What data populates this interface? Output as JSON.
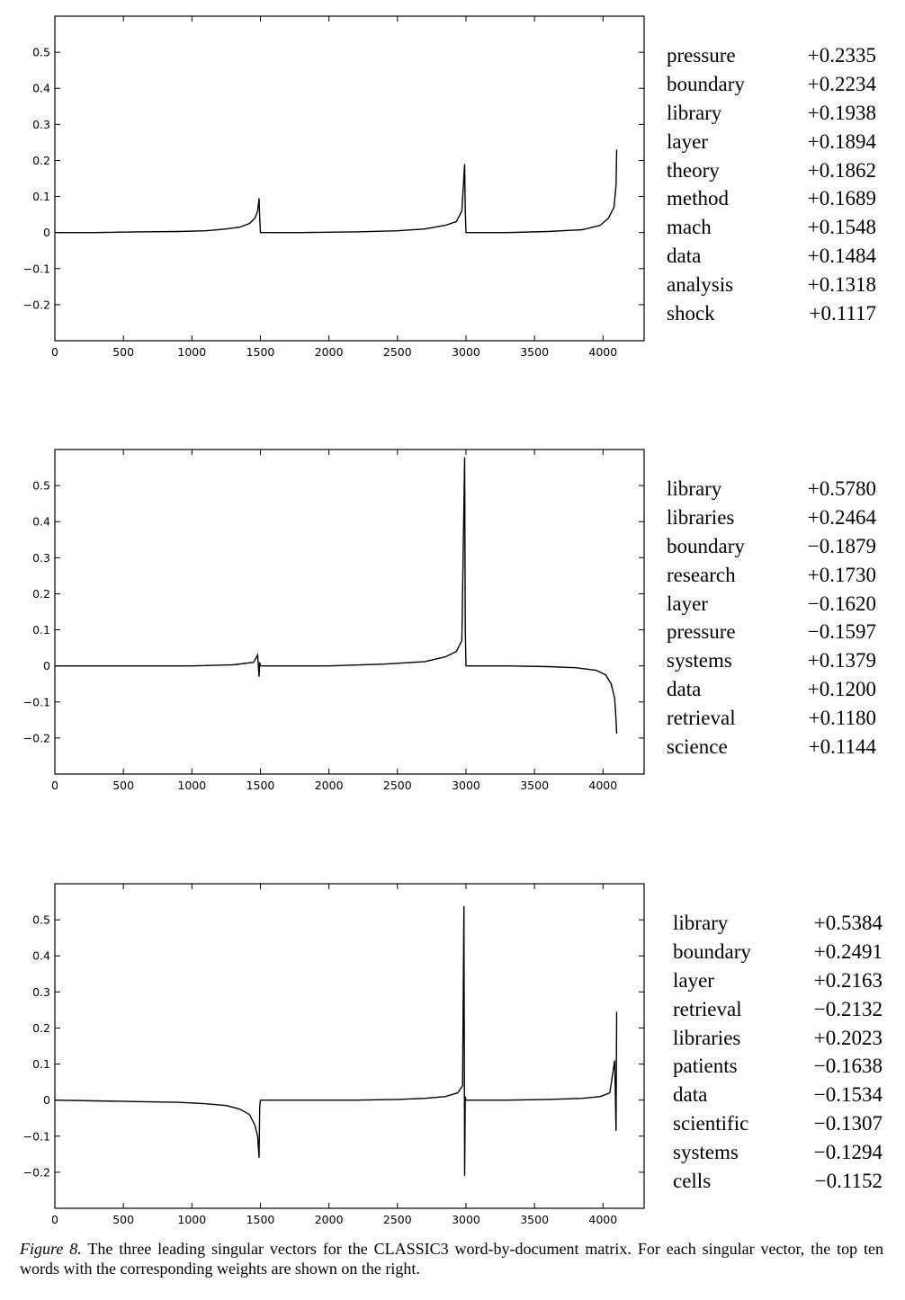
{
  "figure": {
    "label": "Figure 8.",
    "caption": "The three leading singular vectors for the CLASSIC3 word-by-document matrix. For each singular vector, the top ten words with the corresponding weights are shown on the right."
  },
  "chart_data": [
    {
      "type": "line",
      "title": "",
      "xlabel": "",
      "ylabel": "",
      "xlim": [
        0,
        4300
      ],
      "ylim": [
        -0.3,
        0.6
      ],
      "xticks": [
        0,
        500,
        1000,
        1500,
        2000,
        2500,
        3000,
        3500,
        4000
      ],
      "yticks": [
        -0.2,
        -0.1,
        0,
        0.1,
        0.2,
        0.3,
        0.4,
        0.5
      ],
      "yticklabels": [
        "−0.2",
        "−0.1",
        "0",
        "0.1",
        "0.2",
        "0.3",
        "0.4",
        "0.5"
      ],
      "grid": false,
      "series": [
        {
          "x": [
            0,
            300,
            600,
            900,
            1100,
            1250,
            1350,
            1420,
            1460,
            1480,
            1490,
            1495,
            1500,
            1800,
            2200,
            2500,
            2700,
            2850,
            2930,
            2970,
            2990,
            2995,
            3000,
            3300,
            3600,
            3850,
            3980,
            4040,
            4080,
            4095,
            4100
          ],
          "y": [
            0.0,
            0.0,
            0.002,
            0.003,
            0.005,
            0.01,
            0.015,
            0.025,
            0.04,
            0.06,
            0.095,
            0.04,
            0.0,
            0.0,
            0.002,
            0.005,
            0.01,
            0.02,
            0.03,
            0.06,
            0.19,
            0.06,
            0.0,
            0.0,
            0.003,
            0.008,
            0.02,
            0.04,
            0.07,
            0.13,
            0.23
          ]
        }
      ],
      "words": [
        {
          "word": "pressure",
          "weight": "+0.2335"
        },
        {
          "word": "boundary",
          "weight": "+0.2234"
        },
        {
          "word": "library",
          "weight": "+0.1938"
        },
        {
          "word": "layer",
          "weight": "+0.1894"
        },
        {
          "word": "theory",
          "weight": "+0.1862"
        },
        {
          "word": "method",
          "weight": "+0.1689"
        },
        {
          "word": "mach",
          "weight": "+0.1548"
        },
        {
          "word": "data",
          "weight": "+0.1484"
        },
        {
          "word": "analysis",
          "weight": "+0.1318"
        },
        {
          "word": "shock",
          "weight": "+0.1117"
        }
      ]
    },
    {
      "type": "line",
      "title": "",
      "xlabel": "",
      "ylabel": "",
      "xlim": [
        0,
        4300
      ],
      "ylim": [
        -0.3,
        0.6
      ],
      "xticks": [
        0,
        500,
        1000,
        1500,
        2000,
        2500,
        3000,
        3500,
        4000
      ],
      "yticks": [
        -0.2,
        -0.1,
        0,
        0.1,
        0.2,
        0.3,
        0.4,
        0.5
      ],
      "yticklabels": [
        "−0.2",
        "−0.1",
        "0",
        "0.1",
        "0.2",
        "0.3",
        "0.4",
        "0.5"
      ],
      "grid": false,
      "series": [
        {
          "x": [
            0,
            500,
            1000,
            1300,
            1450,
            1480,
            1490,
            1495,
            1500,
            2000,
            2400,
            2700,
            2850,
            2930,
            2970,
            2990,
            2995,
            3000,
            3300,
            3600,
            3800,
            3950,
            4020,
            4060,
            4085,
            4095,
            4100
          ],
          "y": [
            0.0,
            0.0,
            0.0,
            0.003,
            0.01,
            0.03,
            -0.03,
            0.01,
            0.0,
            0.0,
            0.005,
            0.012,
            0.025,
            0.04,
            0.07,
            0.578,
            0.1,
            0.0,
            0.0,
            -0.002,
            -0.005,
            -0.012,
            -0.025,
            -0.05,
            -0.09,
            -0.15,
            -0.188
          ]
        }
      ],
      "words": [
        {
          "word": "library",
          "weight": "+0.5780"
        },
        {
          "word": "libraries",
          "weight": "+0.2464"
        },
        {
          "word": "boundary",
          "weight": "−0.1879"
        },
        {
          "word": "research",
          "weight": "+0.1730"
        },
        {
          "word": "layer",
          "weight": "−0.1620"
        },
        {
          "word": "pressure",
          "weight": "−0.1597"
        },
        {
          "word": "systems",
          "weight": "+0.1379"
        },
        {
          "word": "data",
          "weight": "+0.1200"
        },
        {
          "word": "retrieval",
          "weight": "+0.1180"
        },
        {
          "word": "science",
          "weight": "+0.1144"
        }
      ]
    },
    {
      "type": "line",
      "title": "",
      "xlabel": "",
      "ylabel": "",
      "xlim": [
        0,
        4300
      ],
      "ylim": [
        -0.3,
        0.6
      ],
      "xticks": [
        0,
        500,
        1000,
        1500,
        2000,
        2500,
        3000,
        3500,
        4000
      ],
      "yticks": [
        -0.2,
        -0.1,
        0,
        0.1,
        0.2,
        0.3,
        0.4,
        0.5
      ],
      "yticklabels": [
        "−0.2",
        "−0.1",
        "0",
        "0.1",
        "0.2",
        "0.3",
        "0.4",
        "0.5"
      ],
      "grid": false,
      "series": [
        {
          "x": [
            0,
            300,
            600,
            900,
            1100,
            1250,
            1350,
            1420,
            1460,
            1480,
            1490,
            1495,
            1500,
            1800,
            2200,
            2500,
            2700,
            2850,
            2940,
            2975,
            2985,
            2990,
            2995,
            3000,
            3300,
            3600,
            3850,
            3980,
            4050,
            4085,
            4095,
            4100
          ],
          "y": [
            0.0,
            -0.002,
            -0.004,
            -0.006,
            -0.01,
            -0.015,
            -0.025,
            -0.04,
            -0.07,
            -0.1,
            -0.16,
            -0.02,
            0.0,
            0.0,
            0.0,
            0.002,
            0.005,
            0.01,
            0.02,
            0.04,
            0.538,
            -0.21,
            0.01,
            0.0,
            0.0,
            0.002,
            0.005,
            0.01,
            0.02,
            0.11,
            -0.085,
            0.245
          ]
        }
      ],
      "words": [
        {
          "word": "library",
          "weight": "+0.5384"
        },
        {
          "word": "boundary",
          "weight": "+0.2491"
        },
        {
          "word": "layer",
          "weight": "+0.2163"
        },
        {
          "word": "retrieval",
          "weight": "−0.2132"
        },
        {
          "word": "libraries",
          "weight": "+0.2023"
        },
        {
          "word": "patients",
          "weight": "−0.1638"
        },
        {
          "word": "data",
          "weight": "−0.1534"
        },
        {
          "word": "scientific",
          "weight": "−0.1307"
        },
        {
          "word": "systems",
          "weight": "−0.1294"
        },
        {
          "word": "cells",
          "weight": "−0.1152"
        }
      ]
    }
  ]
}
